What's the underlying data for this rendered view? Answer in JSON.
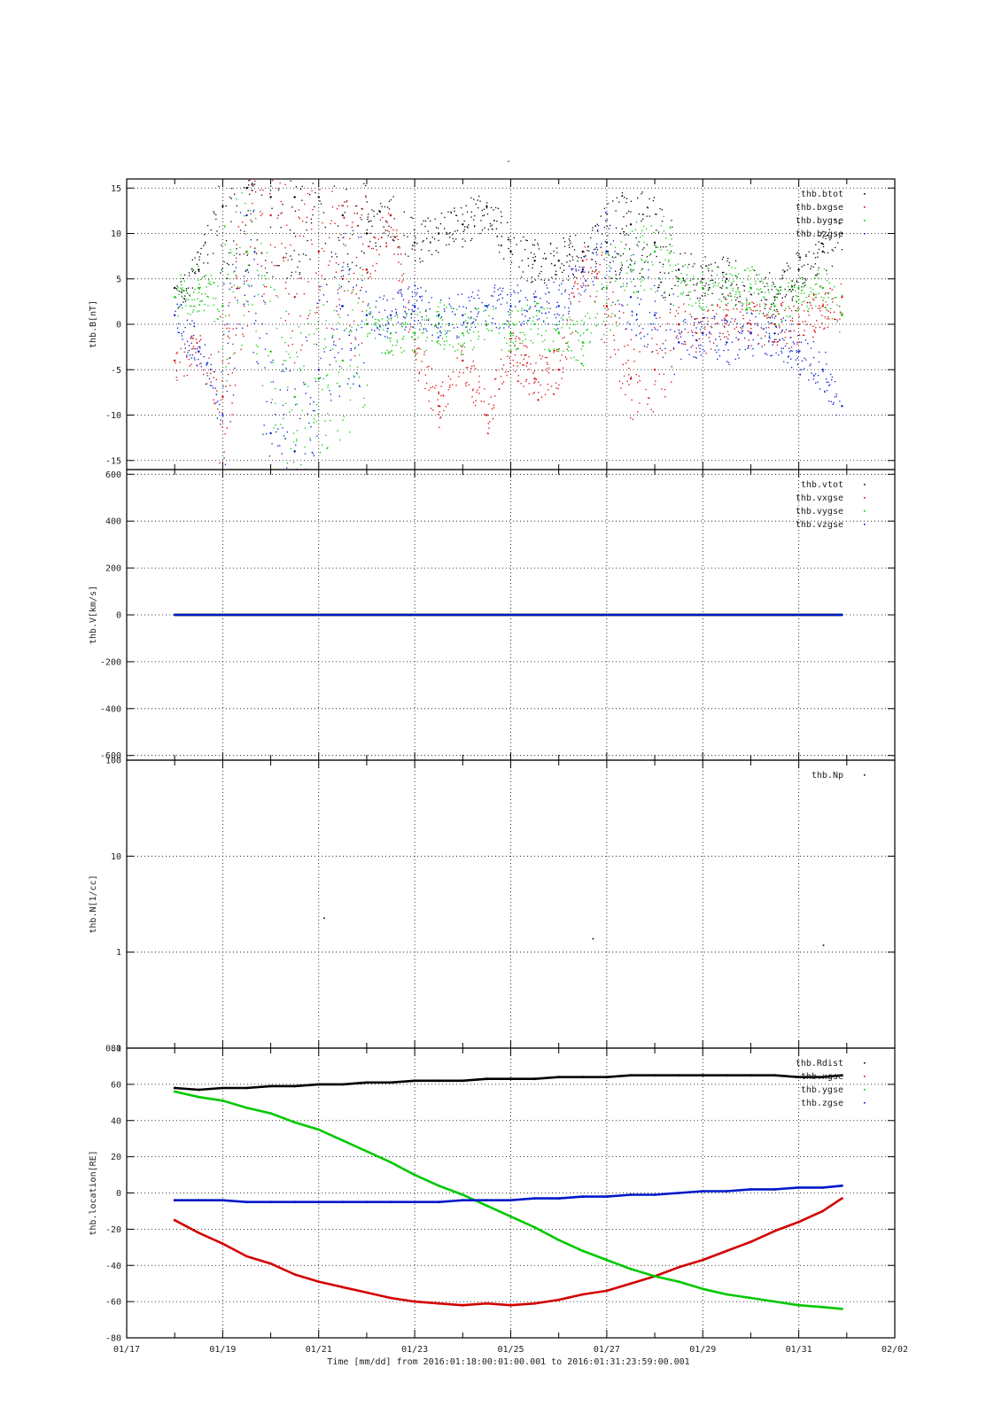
{
  "title": "-",
  "xaxis": {
    "label": "Time [mm/dd]  from 2016:01:18:00:01:00.001  to  2016:01:31:23:59:00.001",
    "range_days": [
      17,
      33
    ],
    "ticks": [
      {
        "day": 17,
        "label": "01/17"
      },
      {
        "day": 19,
        "label": "01/19"
      },
      {
        "day": 21,
        "label": "01/21"
      },
      {
        "day": 23,
        "label": "01/23"
      },
      {
        "day": 25,
        "label": "01/25"
      },
      {
        "day": 27,
        "label": "01/27"
      },
      {
        "day": 29,
        "label": "01/29"
      },
      {
        "day": 31,
        "label": "01/31"
      },
      {
        "day": 33,
        "label": "02/02"
      }
    ]
  },
  "colors": {
    "black": "#000000",
    "red": "#d40000",
    "green": "#00c800",
    "blue": "#0018c8"
  },
  "chart_data": [
    {
      "type": "scatter",
      "ylabel": "thb.B[nT]",
      "ylim": [
        -16,
        16
      ],
      "yticks": [
        -15,
        -10,
        -5,
        0,
        5,
        10,
        15
      ],
      "grid": true,
      "legend_position": "top-right",
      "series": [
        {
          "name": "thb.btot",
          "color": "#000000",
          "x": [
            18.0,
            18.5,
            19.0,
            19.5,
            20.0,
            20.5,
            21.0,
            21.5,
            22.0,
            22.5,
            23.0,
            23.5,
            24.0,
            24.5,
            25.0,
            25.5,
            26.0,
            26.5,
            27.0,
            27.5,
            28.0,
            28.5,
            29.0,
            29.5,
            30.0,
            30.5,
            31.0,
            31.5,
            31.9
          ],
          "y": [
            4,
            6,
            13,
            15,
            14,
            14,
            14,
            12,
            10,
            12,
            9,
            10,
            11,
            13,
            8,
            7,
            7,
            8,
            9,
            11,
            9,
            6,
            5,
            5,
            4,
            3,
            6,
            8,
            10
          ]
        },
        {
          "name": "thb.bxgse",
          "color": "#d40000",
          "x": [
            18.0,
            18.5,
            19.0,
            19.5,
            20.0,
            20.5,
            21.0,
            21.5,
            22.0,
            22.5,
            23.0,
            23.5,
            24.0,
            24.5,
            25.0,
            25.5,
            26.0,
            26.5,
            27.0,
            27.5,
            28.0,
            28.5,
            29.0,
            29.5,
            30.0,
            30.5,
            31.0,
            31.5,
            31.9
          ],
          "y": [
            -4,
            -3,
            -8,
            8,
            12,
            3,
            8,
            5,
            6,
            12,
            -3,
            -9,
            -4,
            -10,
            -3,
            -6,
            -5,
            7,
            2,
            -6,
            -5,
            0,
            -1,
            1,
            0,
            0,
            0,
            2,
            3
          ]
        },
        {
          "name": "thb.bygse",
          "color": "#00c800",
          "x": [
            18.0,
            18.5,
            19.0,
            19.5,
            20.0,
            20.5,
            21.0,
            21.5,
            22.0,
            22.5,
            23.0,
            23.5,
            24.0,
            24.5,
            25.0,
            25.5,
            26.0,
            26.5,
            27.0,
            27.5,
            28.0,
            28.5,
            29.0,
            29.5,
            30.0,
            30.5,
            31.0,
            31.5,
            31.9
          ],
          "y": [
            3,
            4,
            2,
            8,
            -3,
            -8,
            -6,
            -4,
            0,
            -1,
            -1,
            0,
            -1,
            0,
            -1,
            0,
            -1,
            -2,
            4,
            6,
            8,
            5,
            4,
            4,
            4,
            2,
            4,
            4,
            1
          ]
        },
        {
          "name": "thb.bzgse",
          "color": "#0018c8",
          "x": [
            18.0,
            18.5,
            19.0,
            19.5,
            20.0,
            20.5,
            21.0,
            21.5,
            22.0,
            22.5,
            23.0,
            23.5,
            24.0,
            24.5,
            25.0,
            25.5,
            26.0,
            26.5,
            27.0,
            27.5,
            28.0,
            28.5,
            29.0,
            29.5,
            30.0,
            30.5,
            31.0,
            31.5,
            31.9
          ],
          "y": [
            1,
            -3,
            -10,
            12,
            -12,
            -14,
            -5,
            2,
            1,
            1,
            2,
            1,
            1,
            2,
            2,
            3,
            2,
            6,
            8,
            3,
            1,
            -2,
            -1,
            -2,
            -1,
            -1,
            -3,
            -5,
            -9
          ]
        }
      ]
    },
    {
      "type": "scatter",
      "ylabel": "thb.V[km/s]",
      "ylim": [
        -620,
        620
      ],
      "yticks": [
        -600,
        -400,
        -200,
        0,
        200,
        400,
        600
      ],
      "grid": true,
      "legend_position": "top-right",
      "series": [
        {
          "name": "thb.vtot",
          "color": "#000000",
          "x": [
            18.0,
            31.9
          ],
          "y": [
            0,
            0
          ]
        },
        {
          "name": "thb.vxgse",
          "color": "#d40000",
          "x": [
            18.0,
            31.9
          ],
          "y": [
            0,
            0
          ]
        },
        {
          "name": "thb.vygse",
          "color": "#00c800",
          "x": [
            18.0,
            31.9
          ],
          "y": [
            0,
            0
          ]
        },
        {
          "name": "thb.vzgse",
          "color": "#0018c8",
          "x": [
            18.0,
            31.9
          ],
          "y": [
            0,
            0
          ]
        }
      ]
    },
    {
      "type": "scatter",
      "ylabel": "thb.N[1/cc]",
      "yscale": "log",
      "ylim": [
        0.1,
        100
      ],
      "yticks": [
        0.1,
        1,
        10,
        100
      ],
      "ytick_labels": [
        "0.1",
        "1",
        "10",
        "100"
      ],
      "grid": true,
      "legend_position": "top-right",
      "series": [
        {
          "name": "thb.Np",
          "color": "#000000",
          "x": [
            21.1,
            26.7,
            31.5
          ],
          "y": [
            2.3,
            1.4,
            1.2
          ]
        }
      ]
    },
    {
      "type": "line",
      "ylabel": "thb.location[RE]",
      "ylim": [
        -80,
        80
      ],
      "yticks": [
        -80,
        -60,
        -40,
        -20,
        0,
        20,
        40,
        60,
        80
      ],
      "grid": true,
      "legend_position": "top-right",
      "series": [
        {
          "name": "thb.Rdist",
          "color": "#000000",
          "x": [
            18.0,
            18.5,
            19.0,
            19.5,
            20.0,
            20.5,
            21.0,
            21.5,
            22.0,
            22.5,
            23.0,
            23.5,
            24.0,
            24.5,
            25.0,
            25.5,
            26.0,
            26.5,
            27.0,
            27.5,
            28.0,
            28.5,
            29.0,
            29.5,
            30.0,
            30.5,
            31.0,
            31.5,
            31.9
          ],
          "y": [
            58,
            57,
            58,
            58,
            59,
            59,
            60,
            60,
            61,
            61,
            62,
            62,
            62,
            63,
            63,
            63,
            64,
            64,
            64,
            65,
            65,
            65,
            65,
            65,
            65,
            65,
            64,
            64,
            65
          ]
        },
        {
          "name": "thb.xgse",
          "color": "#d40000",
          "x": [
            18.0,
            18.5,
            19.0,
            19.5,
            20.0,
            20.5,
            21.0,
            21.5,
            22.0,
            22.5,
            23.0,
            23.5,
            24.0,
            24.5,
            25.0,
            25.5,
            26.0,
            26.5,
            27.0,
            27.5,
            28.0,
            28.5,
            29.0,
            29.5,
            30.0,
            30.5,
            31.0,
            31.5,
            31.9
          ],
          "y": [
            -15,
            -22,
            -28,
            -35,
            -39,
            -45,
            -49,
            -52,
            -55,
            -58,
            -60,
            -61,
            -62,
            -61,
            -62,
            -61,
            -59,
            -56,
            -54,
            -50,
            -46,
            -41,
            -37,
            -32,
            -27,
            -21,
            -16,
            -10,
            -3
          ]
        },
        {
          "name": "thb.ygse",
          "color": "#00c800",
          "x": [
            18.0,
            18.5,
            19.0,
            19.5,
            20.0,
            20.5,
            21.0,
            21.5,
            22.0,
            22.5,
            23.0,
            23.5,
            24.0,
            24.5,
            25.0,
            25.5,
            26.0,
            26.5,
            27.0,
            27.5,
            28.0,
            28.5,
            29.0,
            29.5,
            30.0,
            30.5,
            31.0,
            31.5,
            31.9
          ],
          "y": [
            56,
            53,
            51,
            47,
            44,
            39,
            35,
            29,
            23,
            17,
            10,
            4,
            -1,
            -7,
            -13,
            -19,
            -26,
            -32,
            -37,
            -42,
            -46,
            -49,
            -53,
            -56,
            -58,
            -60,
            -62,
            -63,
            -64
          ]
        },
        {
          "name": "thb.zgse",
          "color": "#0018c8",
          "x": [
            18.0,
            18.5,
            19.0,
            19.5,
            20.0,
            20.5,
            21.0,
            21.5,
            22.0,
            22.5,
            23.0,
            23.5,
            24.0,
            24.5,
            25.0,
            25.5,
            26.0,
            26.5,
            27.0,
            27.5,
            28.0,
            28.5,
            29.0,
            29.5,
            30.0,
            30.5,
            31.0,
            31.5,
            31.9
          ],
          "y": [
            -4,
            -4,
            -4,
            -5,
            -5,
            -5,
            -5,
            -5,
            -5,
            -5,
            -5,
            -5,
            -4,
            -4,
            -4,
            -3,
            -3,
            -2,
            -2,
            -1,
            -1,
            0,
            1,
            1,
            2,
            2,
            3,
            3,
            4
          ]
        }
      ]
    }
  ]
}
